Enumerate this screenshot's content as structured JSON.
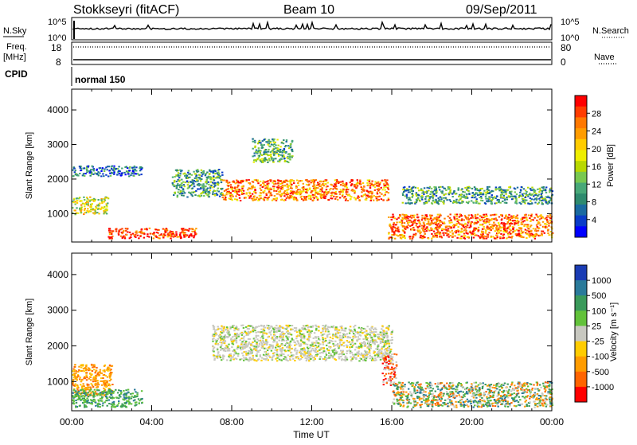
{
  "header": {
    "station": "Stokkseyri (fitACF)",
    "beam": "Beam 10",
    "date": "09/Sep/2011"
  },
  "housekeeping": {
    "nsky_label": "N.Sky",
    "nsearch_label": "N.Search",
    "nsky_ticks": [
      "10^5",
      "10^0"
    ],
    "nsearch_ticks": [
      "10^5",
      "10^0"
    ],
    "freq_label": "Freq.",
    "freq_unit": "[MHz]",
    "freq_ticks": [
      "18",
      "8"
    ],
    "nave_label": "Nave",
    "nave_ticks": [
      "80",
      "0"
    ],
    "cpid_label": "CPID",
    "cpid_value": "normal 150"
  },
  "chart_data": [
    {
      "type": "heatmap",
      "name": "power-panel",
      "ylabel": "Slant Range [km]",
      "yticks": [
        "4000",
        "3000",
        "2000",
        "1000"
      ],
      "ytick_values": [
        4000,
        3000,
        2000,
        1000
      ],
      "ylim": [
        180,
        4600
      ],
      "xlim_hours": [
        0,
        24
      ],
      "xtick_labels": [
        "00:00",
        "04:00",
        "08:00",
        "12:00",
        "16:00",
        "20:00",
        "00:00"
      ],
      "colorbar": {
        "label": "Power [dB]",
        "ticks": [
          "28",
          "24",
          "20",
          "16",
          "12",
          "8",
          "4"
        ],
        "colors": [
          "#ff0000",
          "#ff3c00",
          "#ff7800",
          "#ff9c00",
          "#ffcc00",
          "#eeee00",
          "#b8d800",
          "#78c850",
          "#48a878",
          "#2e8a6e",
          "#1a6aa0",
          "#0a3cc8",
          "#0000ff"
        ]
      },
      "echo_regions": [
        {
          "t": [
            0.0,
            1.8
          ],
          "r": [
            1000,
            1500
          ],
          "level": 0.55
        },
        {
          "t": [
            1.8,
            6.2
          ],
          "r": [
            300,
            600
          ],
          "level": 0.95
        },
        {
          "t": [
            0.0,
            3.5
          ],
          "r": [
            2100,
            2400
          ],
          "level": 0.2
        },
        {
          "t": [
            5.0,
            7.5
          ],
          "r": [
            1500,
            2300
          ],
          "level": 0.3
        },
        {
          "t": [
            7.5,
            15.8
          ],
          "r": [
            1400,
            2000
          ],
          "level": 0.8
        },
        {
          "t": [
            9.0,
            11.0
          ],
          "r": [
            2500,
            3200
          ],
          "level": 0.35
        },
        {
          "t": [
            15.8,
            24.0
          ],
          "r": [
            300,
            1000
          ],
          "level": 0.85
        },
        {
          "t": [
            16.5,
            24.0
          ],
          "r": [
            1300,
            1800
          ],
          "level": 0.3
        }
      ]
    },
    {
      "type": "heatmap",
      "name": "velocity-panel",
      "ylabel": "Slant Range [km]",
      "yticks": [
        "4000",
        "3000",
        "2000",
        "1000"
      ],
      "ytick_values": [
        4000,
        3000,
        2000,
        1000
      ],
      "ylim": [
        180,
        4600
      ],
      "xlim_hours": [
        0,
        24
      ],
      "xtick_labels": [
        "00:00",
        "04:00",
        "08:00",
        "12:00",
        "16:00",
        "20:00",
        "00:00"
      ],
      "xlabel": "Time UT",
      "colorbar": {
        "label": "Velocity [m s⁻¹]",
        "ticks": [
          "1000",
          "500",
          "100",
          "25",
          "-25",
          "-100",
          "-500",
          "-1000"
        ],
        "colors": [
          "#1a3cb4",
          "#2a7a9a",
          "#3a9a5a",
          "#62c23a",
          "#c8c8c0",
          "#ffcc00",
          "#ff9c00",
          "#ff6400",
          "#ff0000"
        ]
      },
      "echo_regions": [
        {
          "t": [
            0.0,
            2.0
          ],
          "r": [
            600,
            1500
          ],
          "level": "orange"
        },
        {
          "t": [
            0.0,
            3.5
          ],
          "r": [
            300,
            800
          ],
          "level": "green"
        },
        {
          "t": [
            7.0,
            16.0
          ],
          "r": [
            1600,
            2600
          ],
          "level": "grey"
        },
        {
          "t": [
            15.5,
            16.2
          ],
          "r": [
            900,
            1800
          ],
          "level": "red"
        },
        {
          "t": [
            16.0,
            24.0
          ],
          "r": [
            300,
            1000
          ],
          "level": "mixed"
        }
      ]
    }
  ]
}
